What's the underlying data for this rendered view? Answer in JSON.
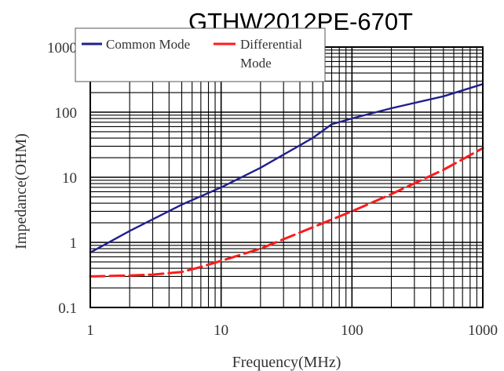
{
  "chart_data": {
    "type": "line",
    "title": "GTHW2012PE-670T",
    "xlabel": "Frequency(MHz)",
    "ylabel": "Impedance(OHM)",
    "xscale": "log",
    "yscale": "log",
    "xlim": [
      1,
      1000
    ],
    "ylim": [
      0.1,
      1000
    ],
    "xticks": [
      1,
      10,
      100,
      1000
    ],
    "xtick_labels": [
      "1",
      "10",
      "100",
      "1000"
    ],
    "yticks": [
      0.1,
      1,
      10,
      100,
      1000
    ],
    "ytick_labels": [
      "0.1",
      "1",
      "10",
      "100",
      "1000"
    ],
    "grid": true,
    "legend": {
      "position": "top-left",
      "entries": [
        {
          "series": 0,
          "lines": [
            "Common Mode"
          ]
        },
        {
          "series": 1,
          "lines": [
            "Differential",
            "Mode"
          ]
        }
      ]
    },
    "series": [
      {
        "name": "Common Mode",
        "color": "#1f1f8f",
        "dash": "solid",
        "x": [
          1,
          2,
          5,
          10,
          20,
          50,
          70,
          100,
          200,
          500,
          1000
        ],
        "y": [
          0.7,
          1.5,
          3.8,
          7,
          14,
          40,
          65,
          80,
          115,
          175,
          270
        ]
      },
      {
        "name": "Differential Mode",
        "color": "#ff1a1a",
        "dash": "dashed",
        "x": [
          1,
          2,
          3,
          5,
          7,
          10,
          20,
          50,
          100,
          200,
          500,
          1000
        ],
        "y": [
          0.3,
          0.31,
          0.32,
          0.35,
          0.42,
          0.52,
          0.8,
          1.7,
          3,
          5.5,
          13,
          28
        ]
      }
    ]
  }
}
